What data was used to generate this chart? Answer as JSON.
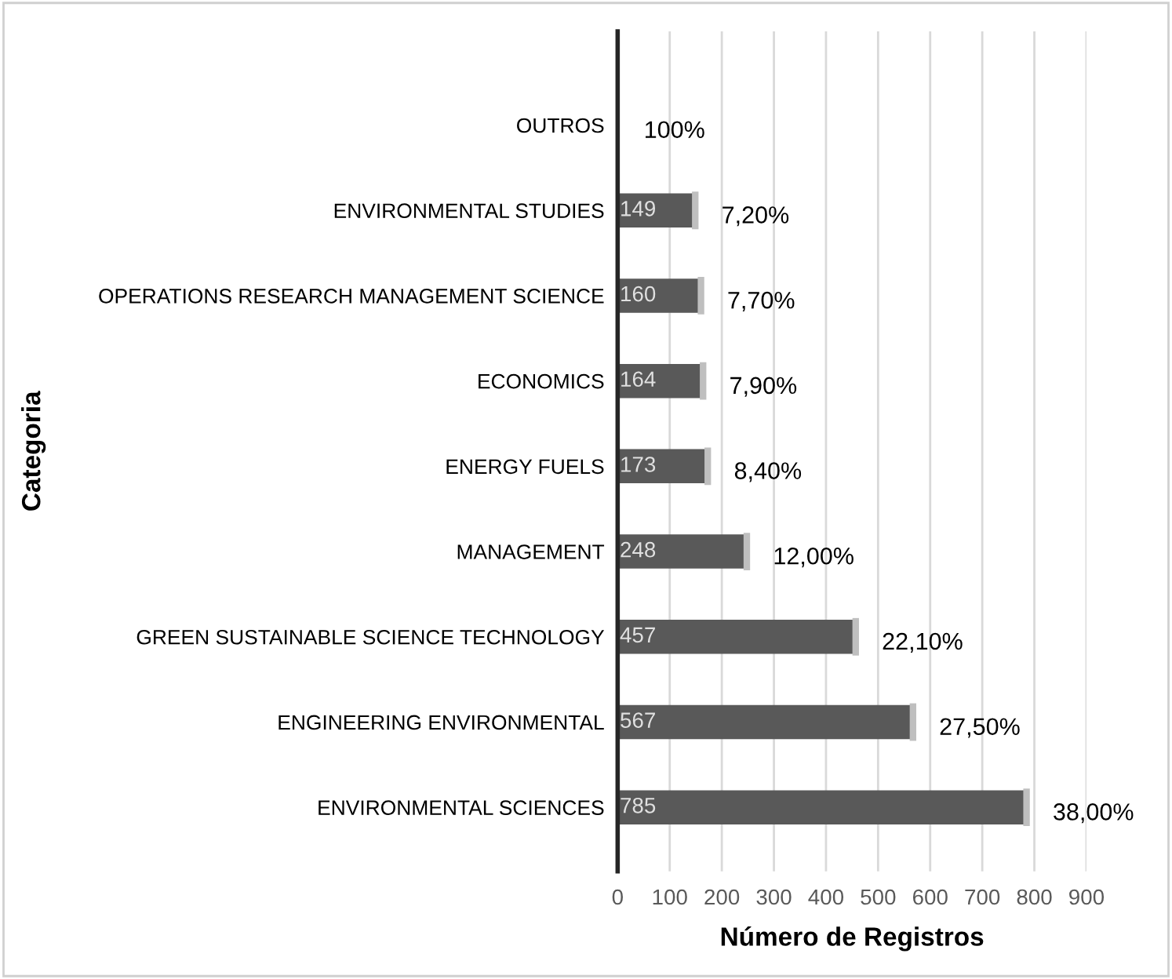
{
  "chart_data": {
    "type": "bar",
    "orientation": "horizontal",
    "ylabel": "Categoria",
    "xlabel": "Número de Registros",
    "categories": [
      "OUTROS",
      "ENVIRONMENTAL STUDIES",
      "OPERATIONS RESEARCH MANAGEMENT SCIENCE",
      "ECONOMICS",
      "ENERGY FUELS",
      "MANAGEMENT",
      "GREEN SUSTAINABLE SCIENCE TECHNOLOGY",
      "ENGINEERING ENVIRONMENTAL",
      "ENVIRONMENTAL SCIENCES"
    ],
    "series": [
      {
        "color": "#595959",
        "values": [
          null,
          149,
          160,
          164,
          173,
          248,
          457,
          567,
          785
        ],
        "value_labels": [
          null,
          "149",
          "160",
          "164",
          "173",
          "248",
          "457",
          "567",
          "785"
        ]
      }
    ],
    "annotations": [
      "100%",
      {
        "text": "7,20%",
        "x": 149,
        "y": "ENVIRONMENTAL STUDIES"
      },
      {
        "text": "7,70%",
        "x": 160,
        "y": "OPERATIONS RESEARCH MANAGEMENT SCIENCE"
      },
      {
        "text": "7,90%",
        "x": 164,
        "y": "ECONOMICS"
      },
      {
        "text": "8,40%",
        "x": 173,
        "y": "ENERGY FUELS"
      },
      {
        "text": "12,00%",
        "x": 248,
        "y": "MANAGEMENT"
      },
      {
        "text": "22,10%",
        "x": 457,
        "y": "GREEN SUSTAINABLE SCIENCE TECHNOLOGY"
      },
      {
        "text": "27,50%",
        "x": 567,
        "y": "ENGINEERING ENVIRONMENTAL"
      },
      {
        "text": "38,00%",
        "x": 785,
        "y": "ENVIRONMENTAL SCIENCES"
      }
    ],
    "xlim": [
      0,
      900
    ],
    "xticks": [
      0,
      100,
      200,
      300,
      400,
      500,
      600,
      700,
      800,
      900
    ],
    "grid": "x",
    "legend": false
  }
}
